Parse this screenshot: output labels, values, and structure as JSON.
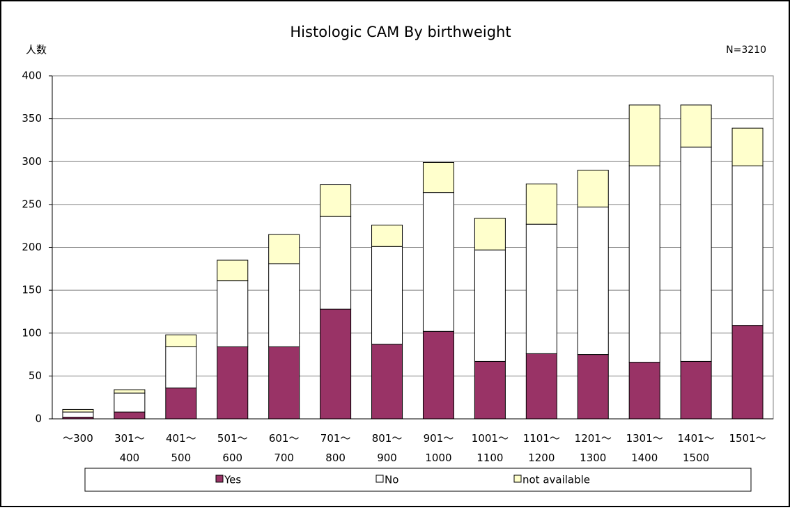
{
  "chart_data": {
    "type": "stacked_bar",
    "title": "Histologic CAM By birthweight",
    "y_label": "人数",
    "annotation": "N=3210",
    "categories": [
      "～300",
      "301～\n400",
      "401～\n500",
      "501～\n600",
      "601～\n700",
      "701～\n800",
      "801～\n900",
      "901～\n1000",
      "1001～\n1100",
      "1101～\n1200",
      "1201～\n1300",
      "1301～\n1400",
      "1401～\n1500",
      "1501～"
    ],
    "series": [
      {
        "name": "Yes",
        "color": "#993366",
        "values": [
          2,
          8,
          36,
          84,
          84,
          128,
          87,
          102,
          67,
          76,
          75,
          66,
          67,
          109
        ]
      },
      {
        "name": "No",
        "color": "#ffffff",
        "values": [
          6,
          22,
          48,
          77,
          97,
          108,
          114,
          162,
          130,
          151,
          172,
          229,
          250,
          186
        ]
      },
      {
        "name": "not available",
        "color": "#ffffcc",
        "values": [
          3,
          4,
          14,
          24,
          34,
          37,
          25,
          35,
          37,
          47,
          43,
          71,
          49,
          44
        ]
      }
    ],
    "ylim": [
      0,
      400
    ],
    "yticks": [
      0,
      50,
      100,
      150,
      200,
      250,
      300,
      350,
      400
    ],
    "grid": true,
    "legend": "bottom"
  }
}
